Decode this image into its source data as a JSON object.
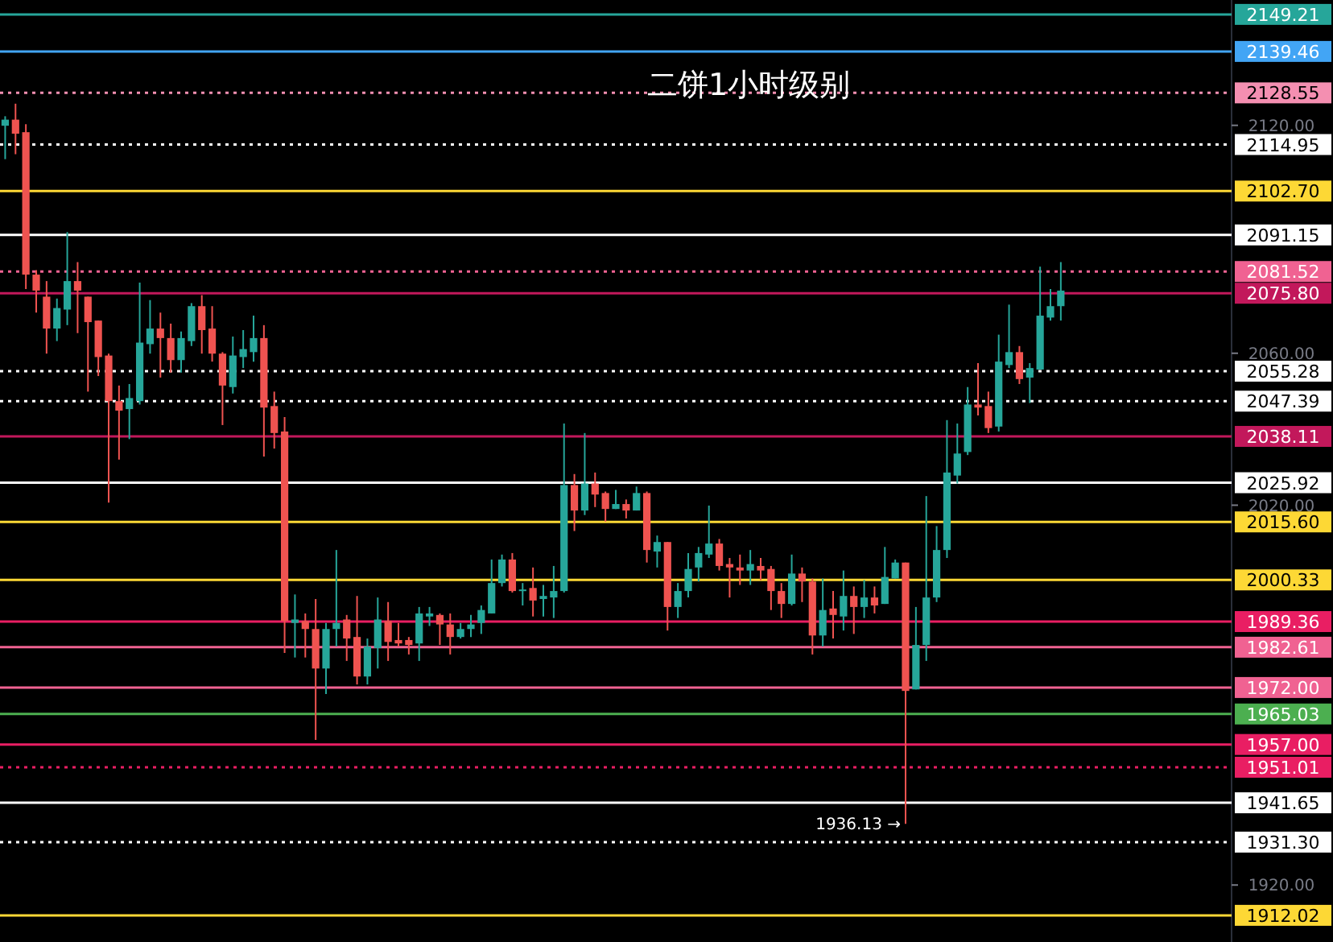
{
  "chart_data": {
    "type": "candlestick",
    "title": "二饼1小时级别",
    "categories": [
      null,
      null,
      null,
      null,
      null,
      null,
      null,
      null,
      null,
      null,
      null,
      null,
      null,
      null,
      null,
      null,
      null,
      null,
      null,
      null,
      null,
      null,
      null,
      null,
      null,
      null,
      null,
      null,
      null,
      null,
      null,
      null,
      null,
      null,
      null,
      null,
      null,
      null,
      null,
      null,
      null,
      null,
      null,
      null,
      null,
      null,
      null,
      null,
      null,
      null,
      null,
      null,
      null,
      null,
      null,
      null,
      null,
      null,
      null,
      null,
      null,
      null,
      null,
      null,
      null,
      null,
      null,
      null,
      null,
      null,
      null,
      null,
      null,
      null,
      null,
      null,
      null,
      null,
      null,
      null,
      null,
      null,
      null,
      null,
      null,
      null,
      null,
      null,
      null,
      null,
      null,
      null,
      null,
      null,
      null,
      null,
      null,
      null,
      null,
      null,
      null,
      null,
      null,
      null,
      null,
      null,
      null,
      null,
      null,
      null,
      null,
      null,
      null,
      null,
      null,
      null,
      null,
      null,
      null
    ],
    "colors": [
      "#26a69a",
      "#ef5350",
      "#ef5350",
      "#ef5350",
      "#ef5350",
      "#26a69a",
      "#26a69a",
      "#ef5350",
      "#ef5350",
      "#ef5350",
      "#ef5350",
      "#ef5350",
      "#26a69a",
      "#26a69a",
      "#26a69a",
      "#ef5350",
      "#ef5350",
      "#26a69a",
      "#26a69a",
      "#ef5350",
      "#ef5350",
      "#ef5350",
      "#26a69a",
      "#26a69a",
      "#26a69a",
      "#ef5350",
      "#ef5350",
      "#ef5350",
      "#26a69a",
      "#ef5350",
      "#ef5350",
      "#26a69a",
      "#26a69a",
      "#ef5350",
      "#ef5350",
      "#26a69a",
      "#26a69a",
      "#ef5350",
      "#ef5350",
      "#ef5350",
      "#26a69a",
      "#26a69a",
      "#ef5350",
      "#ef5350",
      "#26a69a",
      "#26a69a",
      "#26a69a",
      "#26a69a",
      "#26a69a",
      "#ef5350",
      "#26a69a",
      "#ef5350",
      "#26a69a",
      "#26a69a",
      "#26a69a",
      "#ef5350",
      "#26a69a",
      "#ef5350",
      "#ef5350",
      "#26a69a",
      "#ef5350",
      "#26a69a",
      "#ef5350",
      "#26a69a",
      "#ef5350",
      "#26a69a",
      "#26a69a",
      "#26a69a",
      "#26a69a",
      "#ef5350",
      "#ef5350",
      "#ef5350",
      "#26a69a",
      "#ef5350",
      "#ef5350",
      "#ef5350",
      "#26a69a",
      "#ef5350",
      "#ef5350",
      "#26a69a",
      "#ef5350",
      "#26a69a",
      "#ef5350",
      "#26a69a",
      "#ef5350",
      "#26a69a",
      "#26a69a",
      "#ef5350",
      "#26a69a",
      "#26a69a",
      "#26a69a",
      "#26a69a",
      "#26a69a",
      "#26a69a",
      "#ef5350",
      "#ef5350",
      "#26a69a",
      "#26a69a",
      "#ef5350",
      "#26a69a",
      "#26a69a",
      "#26a69a",
      "#26a69a",
      null,
      null,
      null,
      null,
      null,
      null,
      null,
      null,
      null,
      null,
      null,
      null,
      null,
      null,
      null,
      null
    ],
    "ohlc": [
      [
        2119.9,
        2122.4,
        2111.1,
        2121.5
      ],
      [
        2121.5,
        2125.7,
        2112.4,
        2117.8
      ],
      [
        2118.2,
        2120.3,
        2076.9,
        2080.7
      ],
      [
        2080.7,
        2081.9,
        2070.7,
        2076.5
      ],
      [
        2074.9,
        2079.0,
        2059.9,
        2066.5
      ],
      [
        2066.5,
        2074.4,
        2063.2,
        2071.9
      ],
      [
        2071.5,
        2091.9,
        2067.4,
        2079.0
      ],
      [
        2079.0,
        2084.0,
        2065.3,
        2076.5
      ],
      [
        2074.9,
        2074.9,
        2049.9,
        2068.2
      ],
      [
        2068.6,
        2068.6,
        2054.0,
        2059.0
      ],
      [
        2059.4,
        2059.9,
        2020.7,
        2047.4
      ],
      [
        2047.4,
        2051.5,
        2032.0,
        2044.9
      ],
      [
        2045.3,
        2051.9,
        2037.4,
        2048.2
      ],
      [
        2047.4,
        2078.6,
        2046.5,
        2062.8
      ],
      [
        2062.4,
        2074.0,
        2059.9,
        2066.5
      ],
      [
        2066.5,
        2070.7,
        2053.6,
        2064.0
      ],
      [
        2064.0,
        2067.8,
        2054.9,
        2058.2
      ],
      [
        2058.2,
        2065.7,
        2054.9,
        2064.0
      ],
      [
        2063.2,
        2073.2,
        2061.9,
        2072.4
      ],
      [
        2072.4,
        2075.3,
        2059.9,
        2066.1
      ],
      [
        2066.5,
        2072.4,
        2057.8,
        2059.9
      ],
      [
        2059.9,
        2060.3,
        2041.1,
        2051.5
      ],
      [
        2051.1,
        2064.4,
        2049.4,
        2059.4
      ],
      [
        2059.0,
        2066.1,
        2056.1,
        2061.1
      ],
      [
        2060.3,
        2069.9,
        2057.8,
        2064.0
      ],
      [
        2064.0,
        2067.4,
        2032.8,
        2045.7
      ],
      [
        2046.1,
        2049.9,
        2034.9,
        2039.0
      ],
      [
        2039.4,
        2043.2,
        1981.1,
        1989.5
      ],
      [
        1989.0,
        1996.5,
        1979.9,
        1989.9
      ],
      [
        1989.5,
        1991.5,
        1979.9,
        1987.4
      ],
      [
        1987.4,
        1995.3,
        1958.2,
        1977.0
      ],
      [
        1977.0,
        1989.0,
        1970.3,
        1987.4
      ],
      [
        1987.4,
        2008.2,
        1982.8,
        1989.0
      ],
      [
        1989.9,
        1991.1,
        1979.0,
        1984.9
      ],
      [
        1985.3,
        1996.1,
        1972.8,
        1974.9
      ],
      [
        1974.9,
        1984.9,
        1972.8,
        1982.8
      ],
      [
        1982.4,
        1995.7,
        1977.0,
        1989.9
      ],
      [
        1989.5,
        1994.5,
        1979.0,
        1984.0
      ],
      [
        1984.5,
        1989.0,
        1982.8,
        1983.6
      ],
      [
        1984.5,
        1985.3,
        1980.7,
        1983.2
      ],
      [
        1983.6,
        1993.2,
        1979.0,
        1991.5
      ],
      [
        1990.7,
        1993.2,
        1988.2,
        1991.5
      ],
      [
        1991.1,
        1991.5,
        1983.2,
        1988.6
      ],
      [
        1988.6,
        1991.5,
        1980.7,
        1985.3
      ],
      [
        1985.3,
        1989.0,
        1984.9,
        1987.4
      ],
      [
        1987.4,
        1991.1,
        1985.3,
        1988.6
      ],
      [
        1989.0,
        1993.6,
        1986.1,
        1992.4
      ],
      [
        1991.5,
        2005.7,
        1991.5,
        1999.5
      ],
      [
        1999.5,
        2007.0,
        1998.6,
        2005.7
      ],
      [
        2005.7,
        2007.4,
        1997.0,
        1997.4
      ],
      [
        1997.4,
        1999.5,
        1993.6,
        1997.8
      ],
      [
        1998.2,
        2003.6,
        1990.7,
        1994.9
      ],
      [
        1995.3,
        1999.0,
        1990.7,
        1996.1
      ],
      [
        1995.7,
        2004.0,
        1990.3,
        1997.4
      ],
      [
        1997.4,
        2041.5,
        1997.0,
        2025.3
      ],
      [
        2025.3,
        2028.2,
        2013.2,
        2018.6
      ],
      [
        2018.6,
        2039.0,
        2017.4,
        2025.7
      ],
      [
        2025.7,
        2028.6,
        2019.5,
        2022.8
      ],
      [
        2023.2,
        2023.6,
        2015.7,
        2019.0
      ],
      [
        2019.0,
        2024.0,
        2019.0,
        2020.3
      ],
      [
        2020.3,
        2021.5,
        2016.5,
        2018.6
      ],
      [
        2018.6,
        2024.9,
        2018.6,
        2023.2
      ],
      [
        2023.2,
        2023.6,
        2004.9,
        2008.2
      ],
      [
        2007.8,
        2012.0,
        2003.6,
        2010.3
      ],
      [
        2010.3,
        2010.3,
        1987.0,
        1993.2
      ],
      [
        1993.2,
        1999.5,
        1990.3,
        1997.4
      ],
      [
        1997.4,
        2007.4,
        1995.7,
        2003.2
      ],
      [
        2003.6,
        2009.0,
        1999.9,
        2007.4
      ],
      [
        2007.0,
        2019.9,
        2006.1,
        2009.9
      ],
      [
        2009.9,
        2011.1,
        2002.8,
        2004.0
      ],
      [
        2004.5,
        2006.1,
        1995.7,
        2003.6
      ],
      [
        2003.6,
        2007.0,
        1999.0,
        2002.8
      ],
      [
        2002.8,
        2008.2,
        1999.0,
        2004.5
      ],
      [
        2004.0,
        2006.1,
        2000.3,
        2002.8
      ],
      [
        2003.2,
        2004.0,
        1992.4,
        1997.4
      ],
      [
        1997.4,
        1999.5,
        1990.3,
        1994.0
      ],
      [
        1994.0,
        2007.0,
        1993.6,
        2002.0
      ],
      [
        2002.0,
        2003.6,
        1994.5,
        1999.9
      ],
      [
        1999.9,
        2000.7,
        1980.7,
        1985.7
      ],
      [
        1985.7,
        2000.7,
        1982.8,
        1992.4
      ],
      [
        1992.8,
        1997.4,
        1984.9,
        1991.1
      ],
      [
        1990.7,
        2002.8,
        1987.0,
        1996.1
      ],
      [
        1996.1,
        1998.6,
        1986.1,
        1993.2
      ],
      [
        1993.2,
        2000.3,
        1990.3,
        1995.7
      ],
      [
        1995.7,
        1998.6,
        1991.5,
        1993.6
      ],
      [
        1994.0,
        2009.0,
        1994.0,
        2001.1
      ],
      [
        2000.7,
        2005.7,
        2000.7,
        2004.9
      ],
      [
        2004.9,
        2004.9,
        1936.13,
        1971.1
      ],
      [
        1971.5,
        1993.2,
        1971.5,
        1983.2
      ],
      [
        1983.2,
        2022.4,
        1979.0,
        1995.7
      ],
      [
        1995.7,
        2014.5,
        1994.5,
        2008.2
      ],
      [
        2008.2,
        2042.4,
        2006.1,
        2028.6
      ],
      [
        2027.8,
        2041.5,
        2025.7,
        2033.6
      ],
      [
        2034.0,
        2051.1,
        2033.2,
        2046.5
      ],
      [
        2046.5,
        2057.4,
        2043.6,
        2045.7
      ],
      [
        2046.1,
        2049.9,
        2039.0,
        2040.3
      ],
      [
        2040.7,
        2064.9,
        2039.4,
        2057.8
      ],
      [
        2056.9,
        2072.8,
        2056.1,
        2060.3
      ],
      [
        2060.3,
        2061.9,
        2051.9,
        2053.2
      ],
      [
        2053.6,
        2057.4,
        2046.9,
        2056.1
      ],
      [
        2055.7,
        2082.8,
        2055.7,
        2069.9
      ],
      [
        2069.4,
        2076.9,
        2068.6,
        2072.4
      ],
      [
        2072.4,
        2084.0,
        2068.6,
        2076.5
      ],
      null,
      null,
      null,
      null,
      null,
      null,
      null,
      null,
      null,
      null,
      null,
      null,
      null,
      null,
      null,
      null
    ],
    "ylim": [
      1905,
      2153
    ],
    "yticks": [
      {
        "value": 2120,
        "label": "2120.00"
      },
      {
        "value": 2060,
        "label": "2060.00"
      },
      {
        "value": 2020,
        "label": "2020.00"
      },
      {
        "value": 1920,
        "label": "1920.00"
      }
    ],
    "tick_labels": "y",
    "ref_lines": [
      {
        "axis": "y",
        "value": 2149.21,
        "label": "2149.21",
        "color": "#26a69a",
        "line_style": "solid"
      },
      {
        "axis": "y",
        "value": 2139.46,
        "label": "2139.46",
        "color": "#42a5f5",
        "line_style": "solid"
      },
      {
        "axis": "y",
        "value": 2128.55,
        "label": "2128.55",
        "color": "#f48fb1",
        "line_style": "dotted"
      },
      {
        "axis": "y",
        "value": 2114.95,
        "label": "2114.95",
        "color": "#ffffff",
        "line_style": "dotted"
      },
      {
        "axis": "y",
        "value": 2102.7,
        "label": "2102.70",
        "color": "#fdd835",
        "line_style": "solid"
      },
      {
        "axis": "y",
        "value": 2091.15,
        "label": "2091.15",
        "color": "#ffffff",
        "line_style": "solid"
      },
      {
        "axis": "y",
        "value": 2081.52,
        "label": "2081.52",
        "color": "#f06292",
        "line_style": "dotted"
      },
      {
        "axis": "y",
        "value": 2075.8,
        "label": "2075.80",
        "color": "#c2185b",
        "line_style": "solid"
      },
      {
        "axis": "y",
        "value": 2055.28,
        "label": "2055.28",
        "color": "#ffffff",
        "line_style": "dotted"
      },
      {
        "axis": "y",
        "value": 2047.39,
        "label": "2047.39",
        "color": "#ffffff",
        "line_style": "dotted"
      },
      {
        "axis": "y",
        "value": 2038.11,
        "label": "2038.11",
        "color": "#c2185b",
        "line_style": "solid"
      },
      {
        "axis": "y",
        "value": 2025.92,
        "label": "2025.92",
        "color": "#ffffff",
        "line_style": "solid"
      },
      {
        "axis": "y",
        "value": 2015.6,
        "label": "2015.60",
        "color": "#fdd835",
        "line_style": "solid"
      },
      {
        "axis": "y",
        "value": 2000.33,
        "label": "2000.33",
        "color": "#fdd835",
        "line_style": "solid"
      },
      {
        "axis": "y",
        "value": 1989.36,
        "label": "1989.36",
        "color": "#e91e63",
        "line_style": "solid"
      },
      {
        "axis": "y",
        "value": 1982.61,
        "label": "1982.61",
        "color": "#f06292",
        "line_style": "solid"
      },
      {
        "axis": "y",
        "value": 1972.0,
        "label": "1972.00",
        "color": "#f06292",
        "line_style": "solid"
      },
      {
        "axis": "y",
        "value": 1965.03,
        "label": "1965.03",
        "color": "#4caf50",
        "line_style": "solid"
      },
      {
        "axis": "y",
        "value": 1957.0,
        "label": "1957.00",
        "color": "#e91e63",
        "line_style": "solid"
      },
      {
        "axis": "y",
        "value": 1951.01,
        "label": "1951.01",
        "color": "#e91e63",
        "line_style": "dotted"
      },
      {
        "axis": "y",
        "value": 1941.65,
        "label": "1941.65",
        "color": "#ffffff",
        "line_style": "solid"
      },
      {
        "axis": "y",
        "value": 1931.3,
        "label": "1931.30",
        "color": "#ffffff",
        "line_style": "dotted"
      },
      {
        "axis": "y",
        "value": 1912.02,
        "label": "1912.02",
        "color": "#fdd835",
        "line_style": "solid"
      }
    ],
    "annotations": [
      "1936.13 →"
    ]
  }
}
